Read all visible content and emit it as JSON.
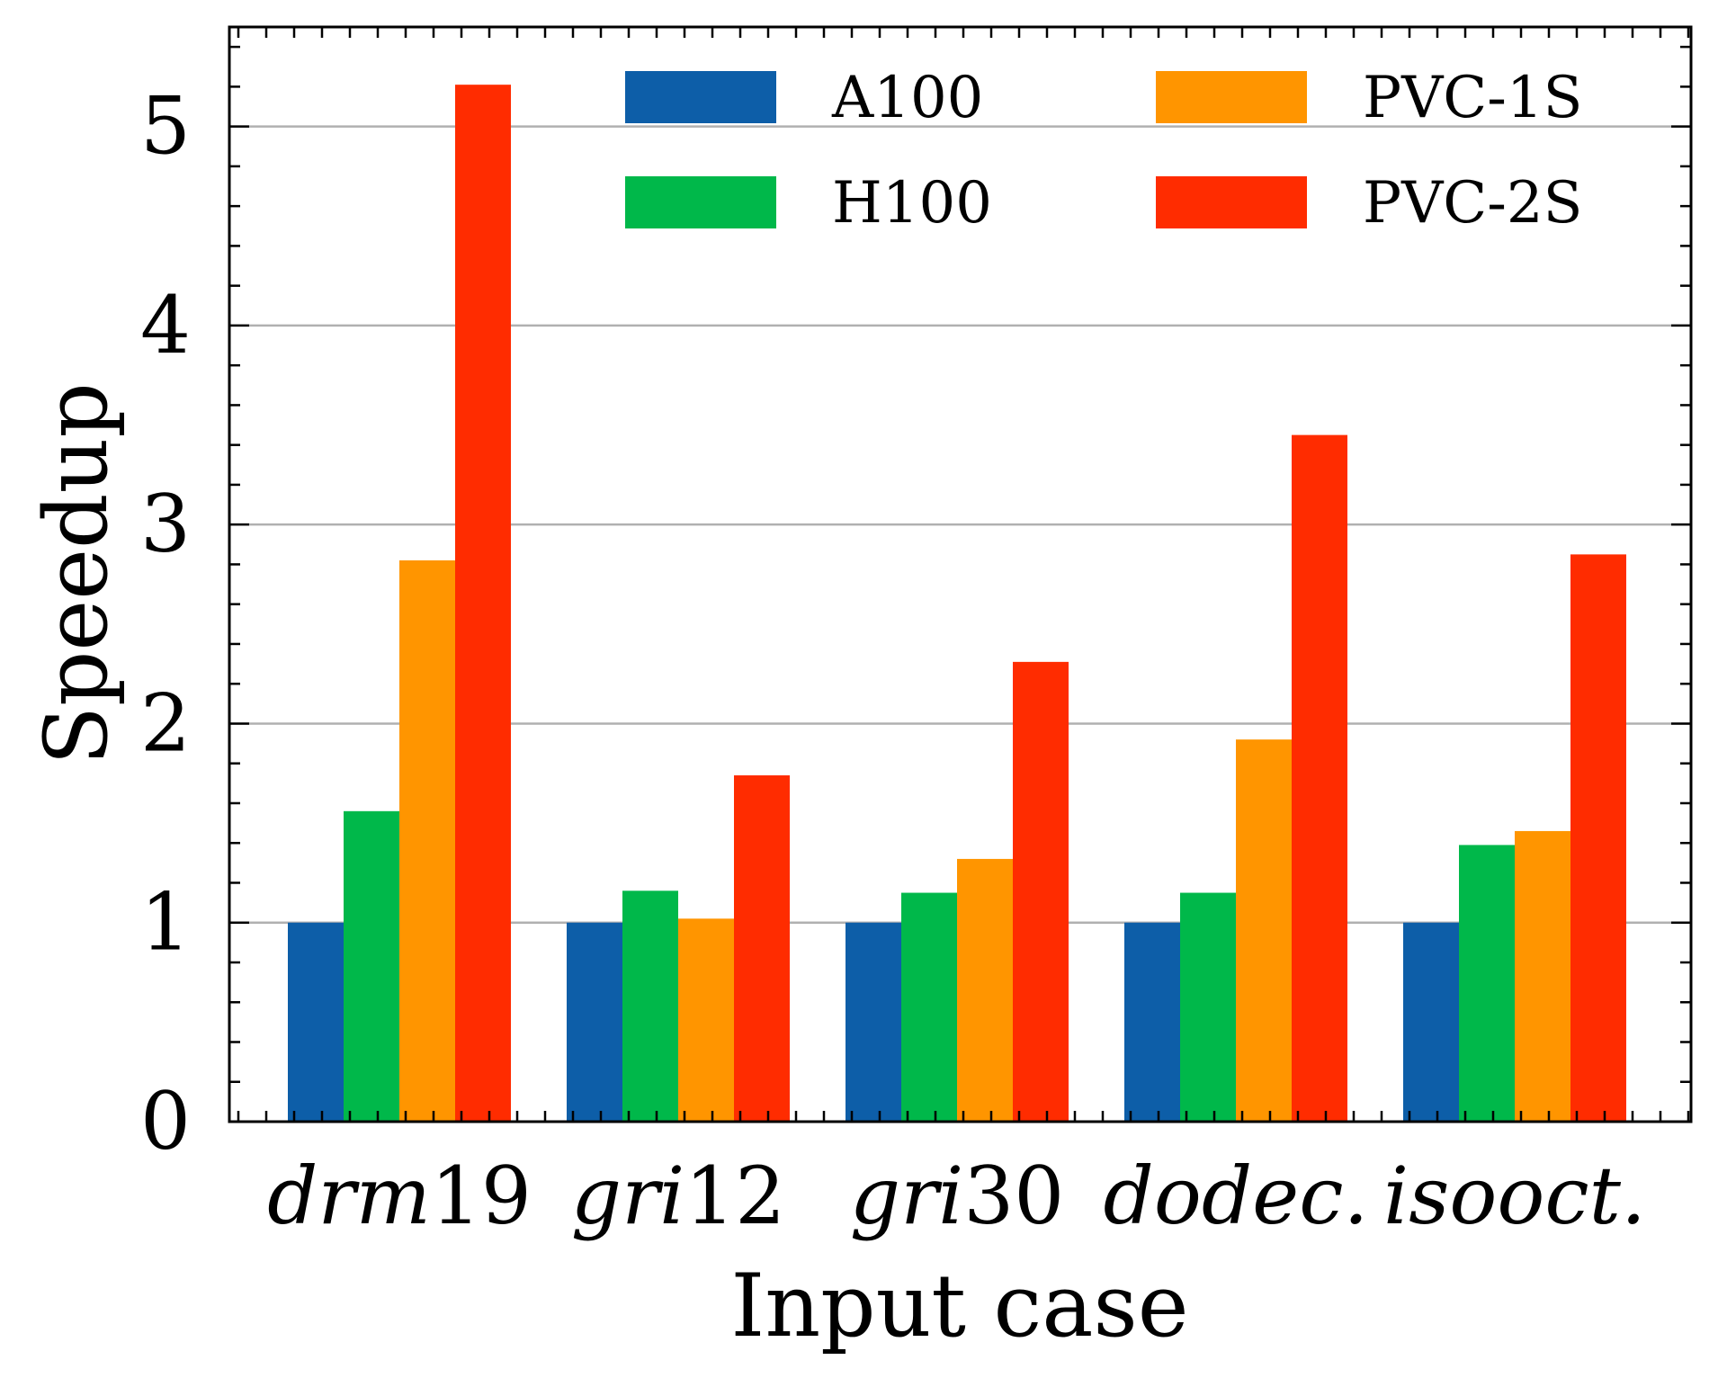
{
  "chart_data": {
    "type": "bar",
    "title": "",
    "xlabel": "Input case",
    "ylabel": "Speedup",
    "ylim": [
      0,
      5.5
    ],
    "yticks": [
      0,
      1,
      2,
      3,
      4,
      5
    ],
    "grid": "horizontal-major",
    "legend_position": "top-right",
    "categories": [
      {
        "base": "drm",
        "num": "19"
      },
      {
        "base": "gri",
        "num": "12"
      },
      {
        "base": "gri",
        "num": "30"
      },
      {
        "base": "dodec.",
        "num": ""
      },
      {
        "base": "isooct.",
        "num": ""
      }
    ],
    "series": [
      {
        "name": "A100",
        "color": "#0d5ea8",
        "values": [
          1.0,
          1.0,
          1.0,
          1.0,
          1.0
        ]
      },
      {
        "name": "H100",
        "color": "#00b84a",
        "values": [
          1.56,
          1.16,
          1.15,
          1.15,
          1.39
        ]
      },
      {
        "name": "PVC-1S",
        "color": "#ff9500",
        "values": [
          2.82,
          1.02,
          1.32,
          1.92,
          1.46
        ]
      },
      {
        "name": "PVC-2S",
        "color": "#ff2c00",
        "values": [
          5.21,
          1.74,
          2.31,
          3.45,
          2.85
        ]
      }
    ]
  }
}
